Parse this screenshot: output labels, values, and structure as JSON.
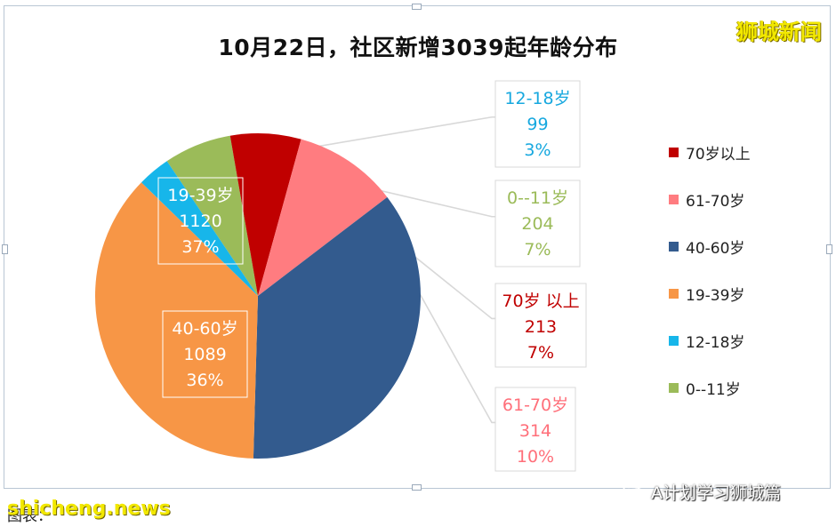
{
  "watermark_top": "狮城新闻",
  "footer": {
    "source": "图表：",
    "watermark": "shicheng.news",
    "account": "A计划学习狮城篇"
  },
  "chart_data": {
    "type": "pie",
    "title": "10月22日，社区新增3039起年龄分布",
    "slices": [
      {
        "label": "0--11岁",
        "value": 204,
        "percent": "7%",
        "color": "#9bbb59"
      },
      {
        "label": "70岁 以上",
        "value": 213,
        "percent": "7%",
        "color": "#c00000"
      },
      {
        "label": "61-70岁",
        "value": 314,
        "percent": "10%",
        "color": "#ff7c80"
      },
      {
        "label": "40-60岁",
        "value": 1089,
        "percent": "36%",
        "color": "#335b8e"
      },
      {
        "label": "19-39岁",
        "value": 1120,
        "percent": "37%",
        "color": "#f79646"
      },
      {
        "label": "12-18岁",
        "value": 99,
        "percent": "3%",
        "color": "#17b6ea"
      }
    ],
    "legend": [
      {
        "label": "70岁以上",
        "color": "#c00000"
      },
      {
        "label": "61-70岁",
        "color": "#ff7c80"
      },
      {
        "label": "40-60岁",
        "color": "#335b8e"
      },
      {
        "label": "19-39岁",
        "color": "#f79646"
      },
      {
        "label": "12-18岁",
        "color": "#17b6ea"
      },
      {
        "label": "0--11岁",
        "color": "#9bbb59"
      }
    ],
    "legend_position": "right"
  }
}
